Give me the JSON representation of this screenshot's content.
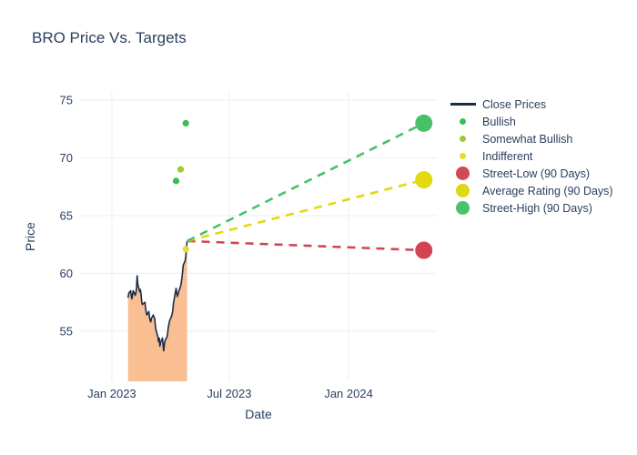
{
  "chart_data": {
    "type": "line",
    "title": "BRO Price Vs. Targets",
    "xlabel": "Date",
    "ylabel": "Price",
    "grid": true,
    "legend_position": "right-top-outside",
    "axes": {
      "x": {
        "title": "Date",
        "ticks": [
          {
            "label": "Jan 2023",
            "date": "2023-01-01"
          },
          {
            "label": "Jul 2023",
            "date": "2023-07-01"
          },
          {
            "label": "Jan 2024",
            "date": "2024-01-01"
          }
        ],
        "range": [
          "2022-11-13",
          "2024-05-16"
        ]
      },
      "y": {
        "title": "Price",
        "ticks": [
          55,
          60,
          65,
          70,
          75
        ],
        "range": [
          50.66,
          75.71
        ]
      }
    },
    "close_prices": {
      "name": "Close Prices",
      "line_color": "#1c2b4a",
      "fill_color": "#f9be92",
      "points": [
        [
          "2023-01-26",
          57.9
        ],
        [
          "2023-01-27",
          58.3
        ],
        [
          "2023-01-30",
          58.5
        ],
        [
          "2023-01-31",
          58.0
        ],
        [
          "2023-02-01",
          57.8
        ],
        [
          "2023-02-02",
          58.2
        ],
        [
          "2023-02-03",
          58.5
        ],
        [
          "2023-02-06",
          58.1
        ],
        [
          "2023-02-07",
          58.3
        ],
        [
          "2023-02-08",
          58.7
        ],
        [
          "2023-02-09",
          59.8
        ],
        [
          "2023-02-10",
          59.1
        ],
        [
          "2023-02-13",
          58.4
        ],
        [
          "2023-02-14",
          58.6
        ],
        [
          "2023-02-15",
          58.2
        ],
        [
          "2023-02-16",
          57.6
        ],
        [
          "2023-02-17",
          57.3
        ],
        [
          "2023-02-21",
          57.5
        ],
        [
          "2023-02-22",
          57.0
        ],
        [
          "2023-02-23",
          56.6
        ],
        [
          "2023-02-24",
          56.4
        ],
        [
          "2023-02-27",
          56.7
        ],
        [
          "2023-02-28",
          56.2
        ],
        [
          "2023-03-01",
          55.9
        ],
        [
          "2023-03-02",
          55.8
        ],
        [
          "2023-03-03",
          56.1
        ],
        [
          "2023-03-06",
          56.4
        ],
        [
          "2023-03-07",
          56.2
        ],
        [
          "2023-03-08",
          56.1
        ],
        [
          "2023-03-09",
          55.5
        ],
        [
          "2023-03-10",
          55.1
        ],
        [
          "2023-03-13",
          54.5
        ],
        [
          "2023-03-14",
          54.1
        ],
        [
          "2023-03-15",
          54.4
        ],
        [
          "2023-03-16",
          53.7
        ],
        [
          "2023-03-17",
          54.0
        ],
        [
          "2023-03-20",
          54.4
        ],
        [
          "2023-03-21",
          53.8
        ],
        [
          "2023-03-22",
          53.3
        ],
        [
          "2023-03-23",
          53.9
        ],
        [
          "2023-03-24",
          54.2
        ],
        [
          "2023-03-27",
          54.5
        ],
        [
          "2023-03-28",
          54.8
        ],
        [
          "2023-03-29",
          55.3
        ],
        [
          "2023-03-30",
          55.6
        ],
        [
          "2023-03-31",
          55.9
        ],
        [
          "2023-04-03",
          56.3
        ],
        [
          "2023-04-04",
          56.5
        ],
        [
          "2023-04-05",
          56.8
        ],
        [
          "2023-04-06",
          57.4
        ],
        [
          "2023-04-10",
          58.7
        ],
        [
          "2023-04-11",
          58.3
        ],
        [
          "2023-04-12",
          58.0
        ],
        [
          "2023-04-13",
          58.2
        ],
        [
          "2023-04-14",
          58.4
        ],
        [
          "2023-04-17",
          58.9
        ],
        [
          "2023-04-18",
          59.2
        ],
        [
          "2023-04-19",
          59.6
        ],
        [
          "2023-04-20",
          60.1
        ],
        [
          "2023-04-21",
          60.7
        ],
        [
          "2023-04-24",
          61.1
        ],
        [
          "2023-04-25",
          61.5
        ],
        [
          "2023-04-26",
          62.2
        ],
        [
          "2023-04-27",
          62.8
        ]
      ]
    },
    "ratings": [
      {
        "name": "Bullish",
        "color": "#3cbd55",
        "points": [
          [
            "2023-04-10",
            68.0
          ],
          [
            "2023-04-25",
            73.0
          ]
        ]
      },
      {
        "name": "Somewhat Bullish",
        "color": "#9acd32",
        "points": [
          [
            "2023-04-17",
            69.0
          ]
        ]
      },
      {
        "name": "Indifferent",
        "color": "#e5de2e",
        "points": [
          [
            "2023-04-25",
            62.1
          ]
        ]
      }
    ],
    "projections": [
      {
        "name": "Street-Low (90 Days)",
        "color": "#d2444f",
        "end": [
          "2024-04-26",
          62.0
        ]
      },
      {
        "name": "Average Rating (90 Days)",
        "color": "#e3d90e",
        "end": [
          "2024-04-26",
          68.1
        ]
      },
      {
        "name": "Street-High (90 Days)",
        "color": "#47c169",
        "end": [
          "2024-04-26",
          73.0
        ]
      }
    ],
    "legend": [
      {
        "label": "Close Prices",
        "marker": "line",
        "color": "#1c2b4a"
      },
      {
        "label": "Bullish",
        "marker": "dot",
        "color": "#3cbd55"
      },
      {
        "label": "Somewhat Bullish",
        "marker": "dot",
        "color": "#9acd32"
      },
      {
        "label": "Indifferent",
        "marker": "dot",
        "color": "#e5de2e"
      },
      {
        "label": "Street-Low (90 Days)",
        "marker": "big-dot",
        "color": "#cf4a55"
      },
      {
        "label": "Average Rating (90 Days)",
        "marker": "big-dot",
        "color": "#e0d713"
      },
      {
        "label": "Street-High (90 Days)",
        "marker": "big-dot",
        "color": "#4ac16d"
      }
    ],
    "style": {
      "text_color": "#2a3f5f",
      "grid_color": "#e9eef8",
      "background": "#ffffff"
    }
  }
}
